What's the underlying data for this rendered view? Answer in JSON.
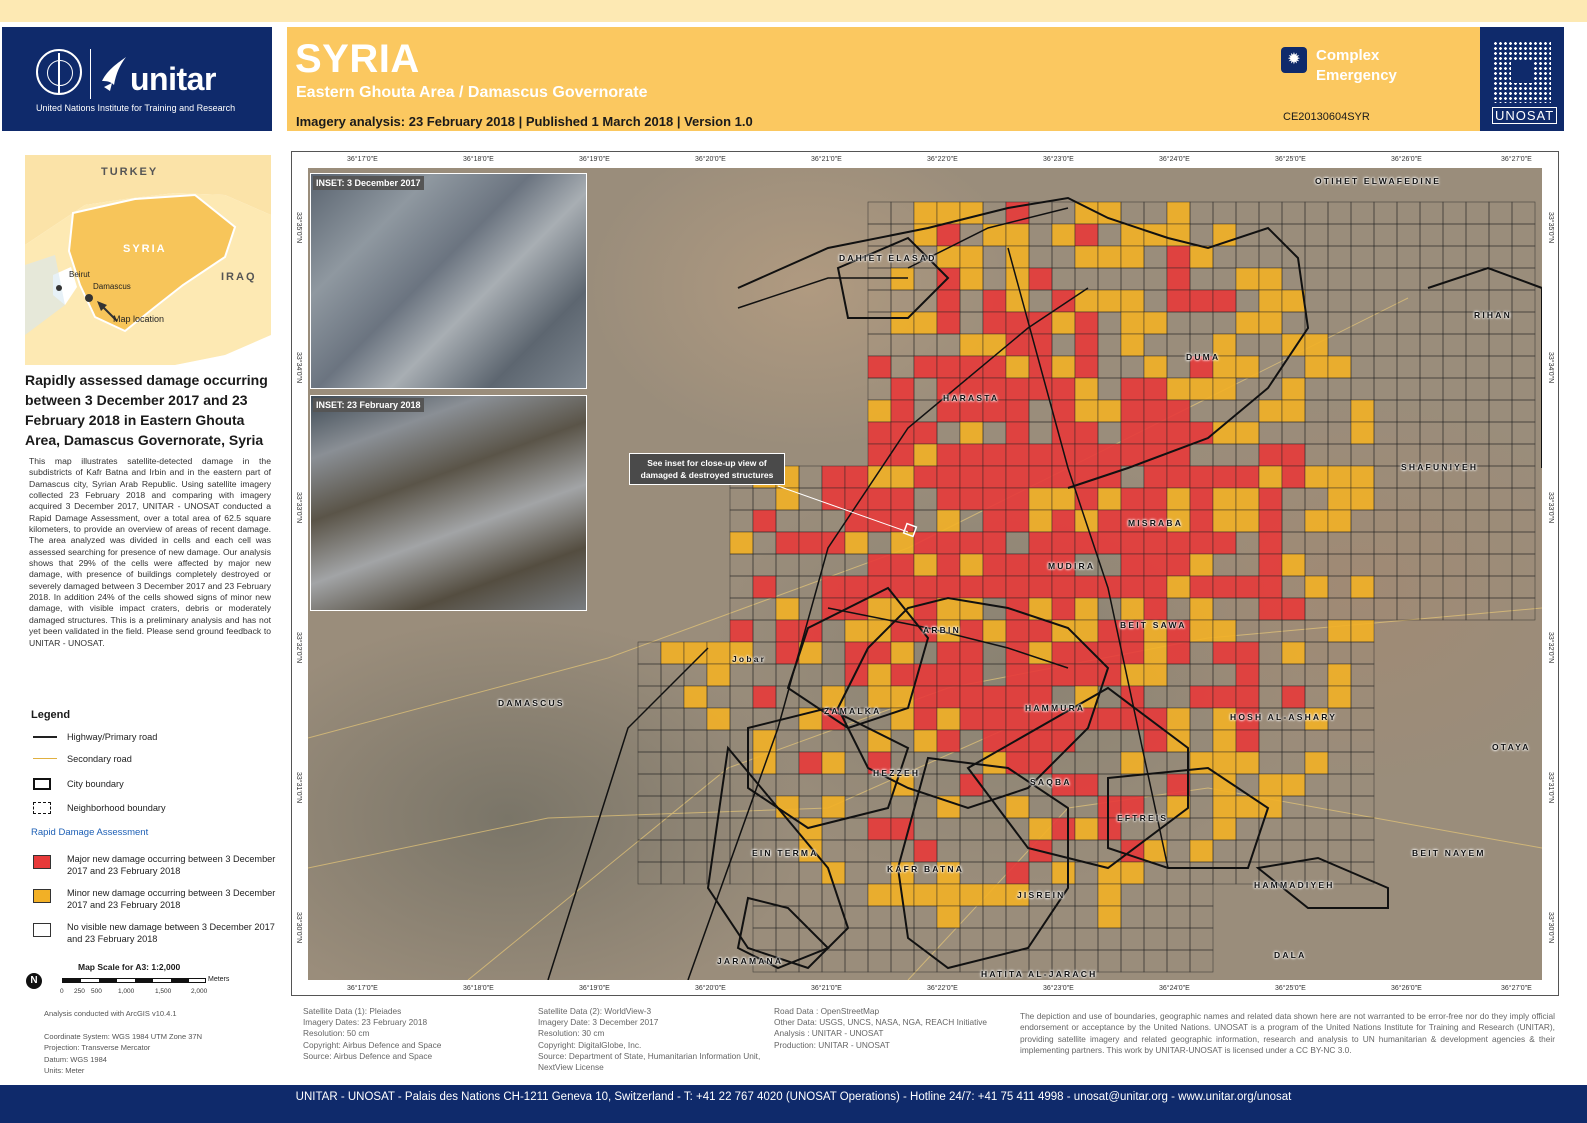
{
  "header": {
    "country": "SYRIA",
    "area": "Eastern Ghouta Area / Damascus Governorate",
    "imagery_line": "Imagery analysis: 23 February 2018 | Published 1 March 2018 | Version 1.0",
    "event_type": "Complex Emergency",
    "glide_code": "CE20130604SYR",
    "org_left": "unitar",
    "org_left_sub": "United Nations Institute for Training and Research",
    "org_right": "UNOSAT"
  },
  "locator": {
    "labels": {
      "turkey": "TURKEY",
      "syria": "SYRIA",
      "iraq": "IRAQ",
      "beirut": "Beirut",
      "damascus": "Damascus",
      "map_location": "Map location"
    }
  },
  "report": {
    "heading": "Rapidly assessed damage occurring between 3 December 2017 and 23 February 2018 in Eastern Ghouta Area, Damascus Governorate, Syria",
    "body": "This map illustrates satellite-detected damage in the subdistricts of Kafr Batna and Irbin and in the eastern part of Damascus city, Syrian Arab Republic. Using satellite imagery collected 23 February 2018 and comparing with imagery acquired 3 December 2017, UNITAR - UNOSAT conducted a Rapid Damage Assessment, over a total area of 62.5 square kilometers, to provide an overview of areas of recent damage. The area analyzed was divided in cells and each cell was assessed searching for presence of new damage. Our analysis shows that 29% of the cells were affected by major new damage, with presence of buildings completely destroyed or severely damaged between 3 December 2017 and 23 February 2018. In addition 24% of the cells showed signs of minor new damage, with visible impact craters, debris or moderately damaged structures. This is a preliminary analysis and has not yet been validated in the field. Please send ground feedback to UNITAR - UNOSAT."
  },
  "legend": {
    "title": "Legend",
    "highway": "Highway/Primary road",
    "secondary": "Secondary road",
    "city": "City boundary",
    "neighborhood": "Neighborhood boundary",
    "rda_title": "Rapid Damage Assessment",
    "major": "Major new damage occurring between 3 December 2017 and 23 February 2018",
    "minor": "Minor new damage occurring between 3 December 2017 and 23 February 2018",
    "none": "No visible new damage between 3 December 2017 and 23 February 2018",
    "colors": {
      "major": "#e73a3a",
      "minor": "#f2b026",
      "none": "#ffffff"
    }
  },
  "scale": {
    "title": "Map Scale for A3: 1:2,000",
    "unit": "Meters",
    "ticks": [
      "0",
      "250",
      "500",
      "1,000",
      "1,500",
      "2,000"
    ]
  },
  "notes": {
    "arcgis": "Analysis conducted with ArcGIS v10.4.1",
    "coord_system": "Coordinate System: WGS 1984 UTM Zone 37N",
    "projection": "Projection: Transverse Mercator",
    "datum": "Datum: WGS 1984",
    "units": "Units: Meter"
  },
  "map": {
    "top_lon_labels": [
      "36°17'0\"E",
      "36°18'0\"E",
      "36°19'0\"E",
      "36°20'0\"E",
      "36°21'0\"E",
      "36°22'0\"E",
      "36°23'0\"E",
      "36°24'0\"E",
      "36°25'0\"E",
      "36°26'0\"E",
      "36°27'0\"E"
    ],
    "bottom_lon_labels": [
      "36°17'0\"E",
      "36°18'0\"E",
      "36°19'0\"E",
      "36°20'0\"E",
      "36°21'0\"E",
      "36°22'0\"E",
      "36°23'0\"E",
      "36°24'0\"E",
      "36°25'0\"E",
      "36°26'0\"E",
      "36°27'0\"E"
    ],
    "lat_labels": [
      "33°35'0\"N",
      "33°34'0\"N",
      "33°33'0\"N",
      "33°32'0\"N",
      "33°31'0\"N",
      "33°30'0\"N"
    ],
    "inset_dec_label": "INSET: 3 December 2017",
    "inset_feb_label": "INSET: 23 February 2018",
    "callout": "See inset for close-up view of damaged & destroyed structures",
    "places": {
      "otihet": "OTIHET ELWAFEDINE",
      "dahiet": "DAHIET ELASAD",
      "rihan": "RIHAN",
      "duma": "DUMA",
      "harasta": "HARASTA",
      "shafuniyeh": "SHAFUNIYEH",
      "misraba": "MISRABA",
      "mudira": "MUDIRA",
      "arbin": "ARBIN",
      "beit_sawa": "BEIT SAWA",
      "jobar": "Jobar",
      "damascus": "DAMASCUS",
      "zamalka": "ZAMALKA",
      "hammura": "HAMMURA",
      "hosh": "HOSH AL-ASHARY",
      "otaya": "OTAYA",
      "hezzeh": "HEZZEH",
      "saqba": "SAQBA",
      "eftreis": "EFTREIS",
      "beit_nayem": "BEIT NAYEM",
      "ein_terma": "EIN TERMA",
      "kafr_batna": "KAFR BATNA",
      "jisrein": "JISREIN",
      "hammadiyeh": "HAMMADIYEH",
      "jaramana": "JARAMANA",
      "dala": "DALA",
      "hatita": "HATITA AL-JARACH"
    }
  },
  "footer_info": {
    "sat1": [
      "Satellite Data (1): Pleiades",
      "Imagery Dates: 23 February 2018",
      "Resolution: 50 cm",
      "Copyright: Airbus Defence and Space",
      "Source: Airbus Defence and Space"
    ],
    "sat2": [
      "Satellite Data (2): WorldView-3",
      "Imagery Date: 3 December 2017",
      "Resolution: 30 cm",
      "Copyright: DigitalGlobe, Inc.",
      "Source: Department of State, Humanitarian Information Unit, NextView License"
    ],
    "road": [
      "Road Data : OpenStreetMap",
      "Other Data: USGS, UNCS, NASA, NGA, REACH Initiative",
      "Analysis : UNITAR - UNOSAT",
      "Production: UNITAR - UNOSAT"
    ],
    "disclaimer": "The depiction and use of boundaries, geographic names and related data shown here are not warranted to be error-free nor do they imply official endorsement or acceptance by the United Nations. UNOSAT is a program of the United Nations Institute for Training and Research (UNITAR), providing satellite imagery and related geographic information, research and analysis to UN humanitarian & development agencies & their implementing partners. This work by UNITAR-UNOSAT is licensed under a CC BY-NC 3.0."
  },
  "footer": {
    "text": "UNITAR - UNOSAT - Palais des Nations CH-1211 Geneva 10, Switzerland - T: +41 22 767 4020 (UNOSAT Operations) - Hotline 24/7: +41 75 411 4998 - unosat@unitar.org - www.unitar.org/unosat"
  }
}
